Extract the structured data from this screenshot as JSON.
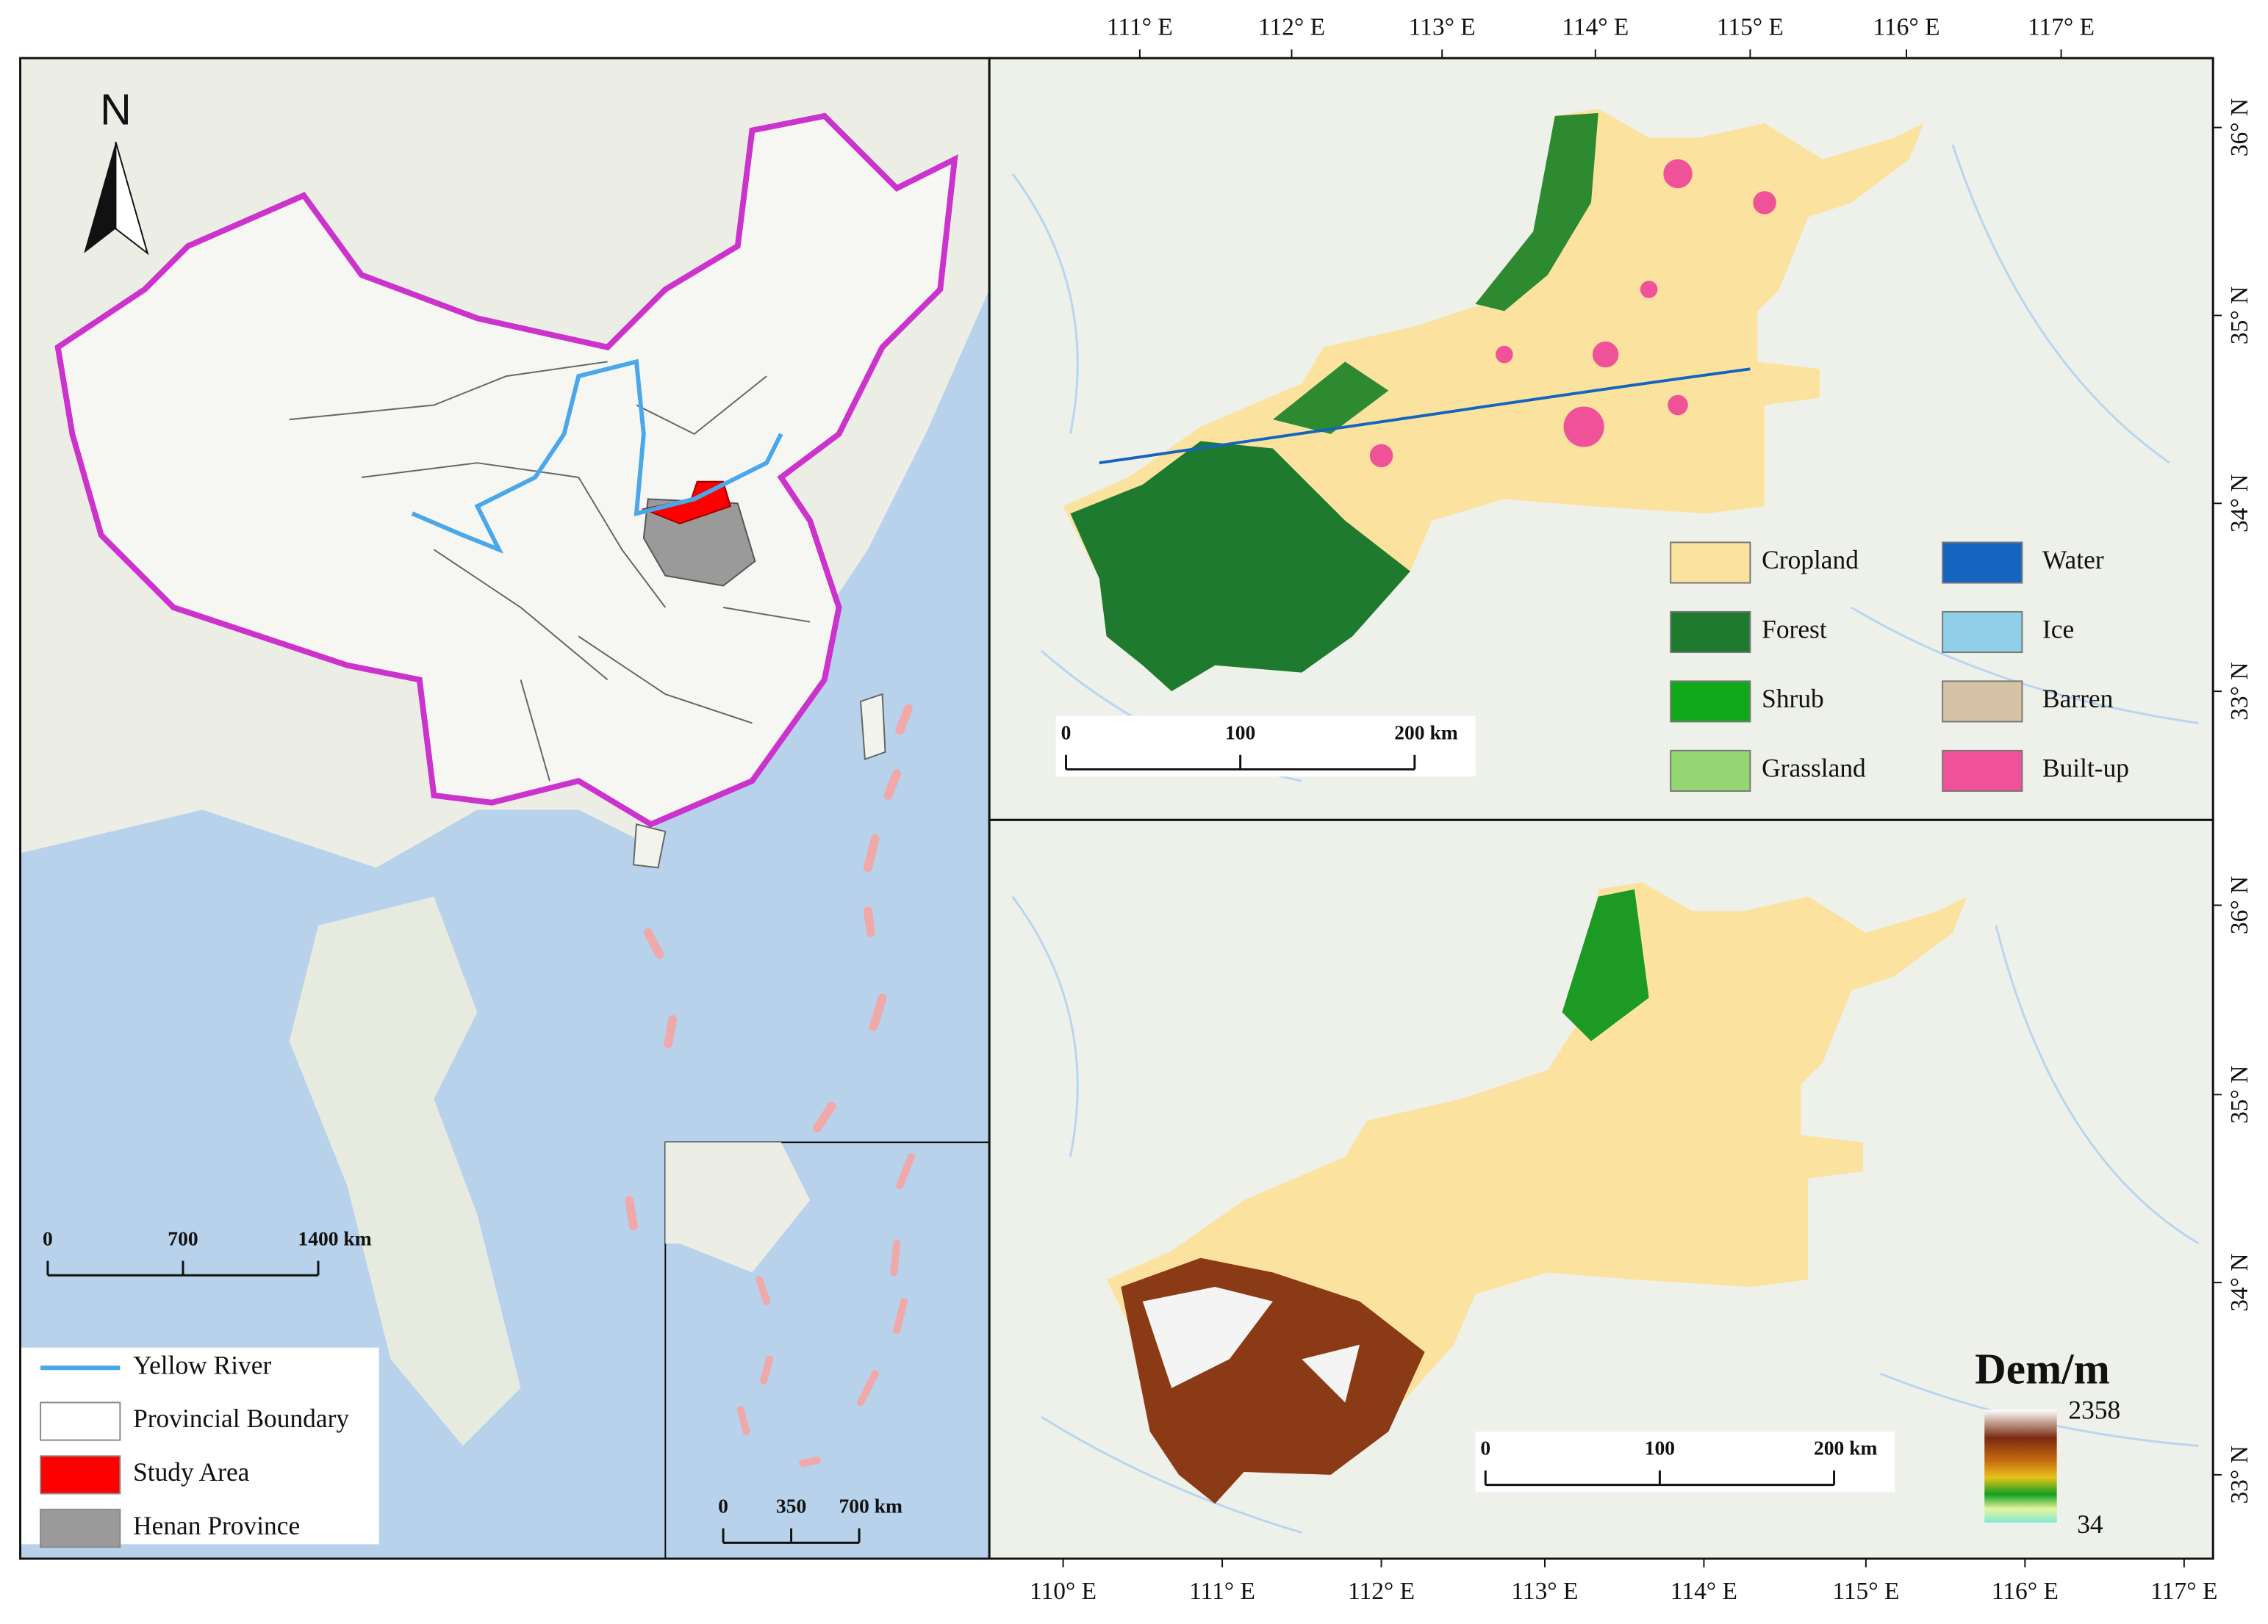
{
  "overview_map": {
    "north_label": "N",
    "scale_bar": [
      "0",
      "700",
      "1400 km"
    ],
    "inset_scale_bar": [
      "0",
      "350",
      "700 km"
    ],
    "legend": [
      {
        "label": "Yellow River",
        "color": "#4aa8ea"
      },
      {
        "label": "Provincial Boundary",
        "color": "#ffffff"
      },
      {
        "label": "Study Area",
        "color": "#ff0000"
      },
      {
        "label": "Henan Province",
        "color": "#9a9a9a"
      }
    ]
  },
  "landuse_map": {
    "top_axis": [
      "111° E",
      "112° E",
      "113° E",
      "114° E",
      "115° E",
      "116° E",
      "117° E"
    ],
    "right_axis": [
      "36° N",
      "35° N",
      "34° N",
      "33° N"
    ],
    "scale_bar": [
      "0",
      "100",
      "200 km"
    ],
    "legend": [
      {
        "label": "Cropland",
        "color": "#fbe29f"
      },
      {
        "label": "Forest",
        "color": "#1e7a2e"
      },
      {
        "label": "Shrub",
        "color": "#11a81b"
      },
      {
        "label": "Grassland",
        "color": "#93d672"
      },
      {
        "label": "Water",
        "color": "#1565c0"
      },
      {
        "label": "Ice",
        "color": "#8fd0e8"
      },
      {
        "label": "Barren",
        "color": "#d6c2a4"
      },
      {
        "label": "Built-up",
        "color": "#f0529a"
      }
    ]
  },
  "dem_map": {
    "bottom_axis": [
      "110° E",
      "111° E",
      "112° E",
      "113° E",
      "114° E",
      "115° E",
      "116° E",
      "117° E"
    ],
    "right_axis": [
      "36° N",
      "35° N",
      "34° N",
      "33° N"
    ],
    "scale_bar": [
      "0",
      "100",
      "200 km"
    ],
    "legend_title": "Dem/m",
    "legend_max": 2358,
    "legend_min": 34
  }
}
